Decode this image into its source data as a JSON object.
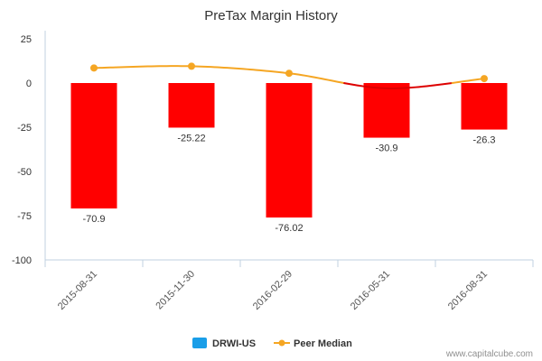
{
  "chart_data": {
    "type": "bar",
    "title": "PreTax Margin History",
    "categories": [
      "2015-08-31",
      "2015-11-30",
      "2016-02-29",
      "2016-05-31",
      "2016-08-31"
    ],
    "yticks": [
      25,
      0,
      -25,
      -50,
      -75,
      -100
    ],
    "ylim": [
      -100,
      25
    ],
    "grid": false,
    "legend_position": "bottom-center",
    "series": [
      {
        "name": "DRWI-US",
        "type": "bar",
        "values": [
          -70.9,
          -25.22,
          -76.02,
          -30.9,
          -26.3
        ],
        "data_labels": [
          "-70.9",
          "-25.22",
          "-76.02",
          "-30.9",
          "-26.3"
        ],
        "bar_color": "#ff0000",
        "legend_color": "#1a9ee8"
      },
      {
        "name": "Peer Median",
        "type": "line",
        "values": [
          8.5,
          9.5,
          5.5,
          -3.0,
          2.5
        ],
        "color": "#f5a623",
        "below_zero_color": "#dd0000"
      }
    ]
  },
  "credit": "www.capitalcube.com"
}
